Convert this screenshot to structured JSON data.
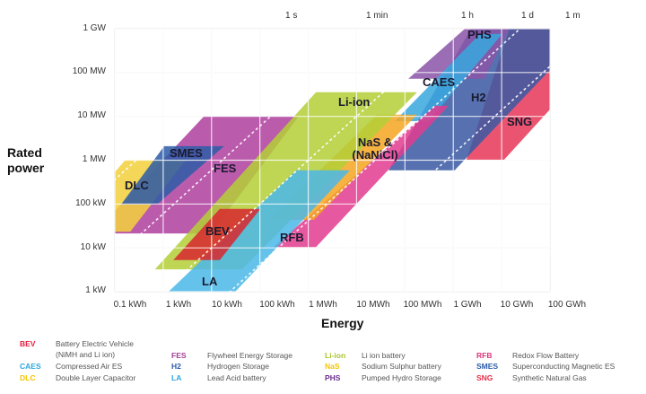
{
  "chart_data": {
    "type": "area",
    "title": "",
    "xlabel": "Energy",
    "ylabel": "Rated power",
    "x_scale": "log10 kWh",
    "y_scale": "log10 kW",
    "xlim": [
      -1,
      8
    ],
    "ylim": [
      0,
      6
    ],
    "grid": true,
    "x_ticks": [
      "0.1 kWh",
      "1 kWh",
      "10 kWh",
      "100 kWh",
      "1 MWh",
      "10 MWh",
      "100 MWh",
      "1 GWh",
      "10 GWh",
      "100 GWh"
    ],
    "y_ticks": [
      "1 kW",
      "10 kW",
      "100 kW",
      "1 MW",
      "10 MW",
      "100 MW",
      "1 GW"
    ],
    "duration_lines": [
      {
        "label": "1 s",
        "log_hours": -3.556
      },
      {
        "label": "1 min",
        "log_hours": -1.778
      },
      {
        "label": "1 h",
        "log_hours": 0
      },
      {
        "label": "1 d",
        "log_hours": 1.38
      },
      {
        "label": "1 m",
        "log_hours": 2.857
      }
    ],
    "series": [
      {
        "name": "SNG",
        "color": "#e8385a",
        "polygon": [
          [
            6.27,
            3.01
          ],
          [
            7.16,
            6
          ],
          [
            8,
            6
          ],
          [
            8,
            4.16
          ],
          [
            7.05,
            3.01
          ]
        ]
      },
      {
        "name": "H2",
        "color": "#3b5aa3",
        "polygon": [
          [
            4.66,
            2.77
          ],
          [
            6.03,
            2.77
          ],
          [
            8,
            5.06
          ],
          [
            8,
            6
          ],
          [
            6.37,
            6
          ]
        ]
      },
      {
        "name": "PHS",
        "color": "#8a55a8",
        "polygon": [
          [
            5.07,
            4.86
          ],
          [
            6.64,
            4.86
          ],
          [
            7.16,
            6
          ],
          [
            6.24,
            6
          ]
        ]
      },
      {
        "name": "CAES",
        "color": "#3aa8de",
        "polygon": [
          [
            4.79,
            3.89
          ],
          [
            5.49,
            3.89
          ],
          [
            7.01,
            5.88
          ],
          [
            6.55,
            5.88
          ]
        ]
      },
      {
        "name": "FES",
        "color": "#b0409e",
        "polygon": [
          [
            -1,
            1.33
          ],
          [
            0.99,
            1.33
          ],
          [
            2.8,
            4.0
          ],
          [
            0.84,
            4.0
          ],
          [
            -1,
            1.84
          ]
        ]
      },
      {
        "name": "DLC",
        "color": "#f2d13c",
        "polygon": [
          [
            -1,
            1.37
          ],
          [
            -0.68,
            1.37
          ],
          [
            0.47,
            3.01
          ],
          [
            -0.78,
            3.01
          ],
          [
            -1,
            2.73
          ]
        ]
      },
      {
        "name": "SMES",
        "color": "#2d5ca8",
        "polygon": [
          [
            -0.87,
            1.99
          ],
          [
            -0.13,
            1.99
          ],
          [
            1.26,
            3.32
          ],
          [
            0.02,
            3.32
          ]
        ]
      },
      {
        "name": "RFB",
        "color": "#e23c8f",
        "polygon": [
          [
            2.28,
            1.02
          ],
          [
            3.16,
            1.02
          ],
          [
            5.9,
            4.24
          ],
          [
            5.62,
            4.24
          ]
        ]
      },
      {
        "name": "NaS & (NaNiCl)",
        "color": "#f5a623",
        "polygon": [
          [
            2.19,
            1.64
          ],
          [
            3.12,
            1.64
          ],
          [
            5.25,
            4.04
          ],
          [
            4.42,
            4.04
          ]
        ]
      },
      {
        "name": "Li-ion",
        "color": "#b3cf38",
        "polygon": [
          [
            -0.17,
            0.51
          ],
          [
            1.63,
            0.51
          ],
          [
            5.25,
            4.55
          ],
          [
            3.16,
            4.55
          ]
        ]
      },
      {
        "name": "LA",
        "color": "#4cb8e8",
        "polygon": [
          [
            0.11,
            0
          ],
          [
            1.49,
            0
          ],
          [
            3.86,
            2.77
          ],
          [
            2.75,
            2.77
          ]
        ]
      },
      {
        "name": "BEV",
        "color": "#d9282f",
        "polygon": [
          [
            0.21,
            0.72
          ],
          [
            1.17,
            0.72
          ],
          [
            2.01,
            1.89
          ],
          [
            1.17,
            1.89
          ]
        ]
      }
    ],
    "shape_labels": {
      "phs": "PHS",
      "caes": "CAES",
      "h2": "H2",
      "sng": "SNG",
      "liion": "Li-ion",
      "nas1": "NaS &",
      "nas2": "(NaNiCl)",
      "smes": "SMES",
      "fes": "FES",
      "dlc": "DLC",
      "bev": "BEV",
      "rfb": "RFB",
      "la": "LA"
    }
  },
  "legend": [
    {
      "code": "BEV",
      "color": "#e31e3c",
      "desc": "Battery Electric Vehicle",
      "desc2": "(NiMH and Li ion)"
    },
    {
      "code": "CAES",
      "color": "#2aa6df",
      "desc": "Compressed Air ES"
    },
    {
      "code": "DLC",
      "color": "#f5c400",
      "desc": "Double Layer Capacitor"
    },
    {
      "code": "FES",
      "color": "#a23c96",
      "desc": "Flywheel Energy Storage"
    },
    {
      "code": "H2",
      "color": "#2b5aa8",
      "desc": "Hydrogen Storage"
    },
    {
      "code": "LA",
      "color": "#2aa6df",
      "desc": "Lead Acid battery"
    },
    {
      "code": "Li-ion",
      "color": "#a8c42a",
      "desc": "Li ion battery"
    },
    {
      "code": "NaS",
      "color": "#f5c400",
      "desc": "Sodium Sulphur battery"
    },
    {
      "code": "PHS",
      "color": "#6a2c8f",
      "desc": "Pumped Hydro Storage"
    },
    {
      "code": "RFB",
      "color": "#e0357b",
      "desc": "Redox Flow Battery"
    },
    {
      "code": "SMES",
      "color": "#2b5aa8",
      "desc": "Superconducting Magnetic ES"
    },
    {
      "code": "SNG",
      "color": "#e8304a",
      "desc": "Synthetic Natural Gas"
    }
  ]
}
